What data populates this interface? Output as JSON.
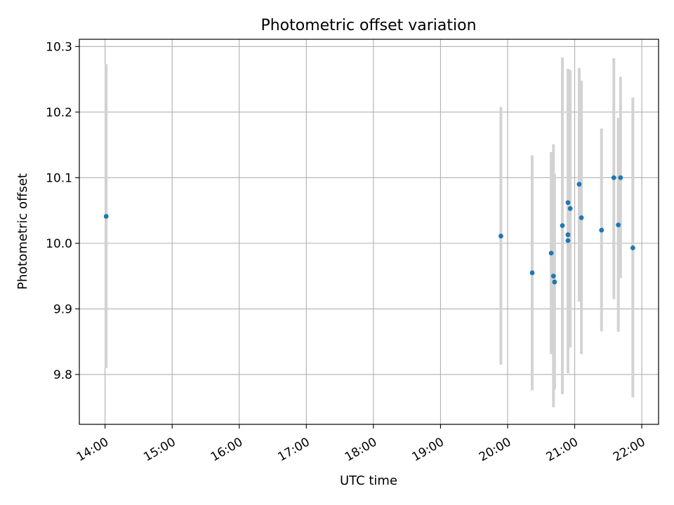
{
  "chart_data": {
    "type": "scatter",
    "title": "Photometric offset variation",
    "xlabel": "UTC time",
    "ylabel": "Photometric offset",
    "x_tick_labels": [
      "14:00",
      "15:00",
      "16:00",
      "17:00",
      "18:00",
      "19:00",
      "20:00",
      "21:00",
      "22:00"
    ],
    "x_tick_values": [
      "14:00",
      "15:00",
      "16:00",
      "17:00",
      "18:00",
      "19:00",
      "20:00",
      "21:00",
      "22:00"
    ],
    "y_tick_labels": [
      "9.8",
      "9.9",
      "10.0",
      "10.1",
      "10.2",
      "10.3"
    ],
    "y_tick_values": [
      9.8,
      9.9,
      10.0,
      10.1,
      10.2,
      10.3
    ],
    "xlim": [
      "13:37",
      "22:15"
    ],
    "ylim": [
      9.724,
      10.311
    ],
    "grid": true,
    "colors": {
      "points": "#1f77b4",
      "errorbars": "#d3d3d3",
      "grid": "#b0b0b0"
    },
    "points": [
      {
        "x": "14:01",
        "y": 10.041,
        "yerr_low": 9.81,
        "yerr_high": 10.273
      },
      {
        "x": "19:54",
        "y": 10.011,
        "yerr_low": 9.815,
        "yerr_high": 10.208
      },
      {
        "x": "20:22",
        "y": 9.955,
        "yerr_low": 9.776,
        "yerr_high": 10.134
      },
      {
        "x": "20:39",
        "y": 9.985,
        "yerr_low": 9.831,
        "yerr_high": 10.139
      },
      {
        "x": "20:41",
        "y": 9.95,
        "yerr_low": 9.75,
        "yerr_high": 10.151
      },
      {
        "x": "20:42",
        "y": 9.941,
        "yerr_low": 9.777,
        "yerr_high": 10.106
      },
      {
        "x": "20:49",
        "y": 10.027,
        "yerr_low": 9.77,
        "yerr_high": 10.283
      },
      {
        "x": "20:54",
        "y": 10.062,
        "yerr_low": 9.857,
        "yerr_high": 10.266
      },
      {
        "x": "20:54",
        "y": 10.013,
        "yerr_low": 9.802,
        "yerr_high": 10.224
      },
      {
        "x": "20:54",
        "y": 10.004,
        "yerr_low": 9.845,
        "yerr_high": 10.162
      },
      {
        "x": "20:56",
        "y": 10.053,
        "yerr_low": 9.841,
        "yerr_high": 10.264
      },
      {
        "x": "21:04",
        "y": 10.09,
        "yerr_low": 9.911,
        "yerr_high": 10.267
      },
      {
        "x": "21:06",
        "y": 10.039,
        "yerr_low": 9.831,
        "yerr_high": 10.248
      },
      {
        "x": "21:24",
        "y": 10.02,
        "yerr_low": 9.866,
        "yerr_high": 10.175
      },
      {
        "x": "21:35",
        "y": 10.1,
        "yerr_low": 9.915,
        "yerr_high": 10.282
      },
      {
        "x": "21:39",
        "y": 10.028,
        "yerr_low": 9.865,
        "yerr_high": 10.191
      },
      {
        "x": "21:41",
        "y": 10.1,
        "yerr_low": 9.947,
        "yerr_high": 10.254
      },
      {
        "x": "21:52",
        "y": 9.993,
        "yerr_low": 9.765,
        "yerr_high": 10.222
      }
    ]
  }
}
